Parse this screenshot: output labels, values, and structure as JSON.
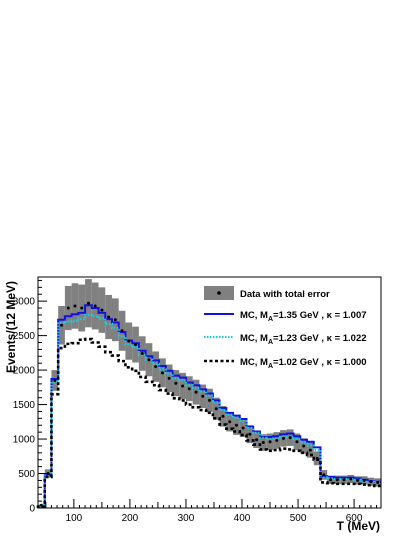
{
  "chart_data": {
    "type": "line",
    "xlabel": "T (MeV)",
    "ylabel": "Events/(12 MeV)",
    "xlim": [
      36,
      648
    ],
    "ylim": [
      0,
      3350
    ],
    "x_ticks": [
      100,
      200,
      300,
      400,
      500,
      600
    ],
    "y_ticks": [
      0,
      500,
      1000,
      1500,
      2000,
      2500,
      3000
    ],
    "bin_width": 12,
    "bin_edges": [
      36,
      48,
      60,
      72,
      84,
      96,
      108,
      120,
      132,
      144,
      156,
      168,
      180,
      192,
      204,
      216,
      228,
      240,
      252,
      264,
      276,
      288,
      300,
      312,
      324,
      336,
      348,
      360,
      372,
      384,
      396,
      408,
      420,
      432,
      444,
      456,
      468,
      480,
      492,
      504,
      516,
      528,
      540,
      552,
      564,
      576,
      588,
      600,
      612,
      624,
      636,
      648
    ],
    "grid": false,
    "legend_position": "top-right",
    "series": [
      {
        "name": "Data with total error",
        "style": "points-with-error-band",
        "color": "#000000",
        "band_color": "#808080",
        "x": [
          42,
          54,
          66,
          78,
          90,
          102,
          114,
          126,
          138,
          150,
          162,
          174,
          186,
          198,
          210,
          222,
          234,
          246,
          258,
          270,
          282,
          294,
          306,
          318,
          330,
          342,
          354,
          366,
          378,
          390,
          402,
          414,
          426,
          438,
          450,
          462,
          474,
          486,
          498,
          510,
          522,
          534,
          546,
          558,
          570,
          582,
          594,
          606,
          618,
          630,
          642
        ],
        "values": [
          40,
          500,
          1850,
          2650,
          2900,
          2930,
          2900,
          2970,
          2930,
          2870,
          2770,
          2730,
          2570,
          2420,
          2370,
          2240,
          2150,
          2050,
          1960,
          1880,
          1810,
          1770,
          1730,
          1680,
          1620,
          1560,
          1440,
          1330,
          1250,
          1200,
          1160,
          1070,
          990,
          950,
          960,
          980,
          1010,
          1020,
          960,
          900,
          840,
          720,
          480,
          410,
          410,
          410,
          420,
          400,
          400,
          380,
          370
        ],
        "error": [
          10,
          60,
          150,
          280,
          320,
          330,
          340,
          350,
          340,
          330,
          320,
          310,
          290,
          270,
          260,
          250,
          240,
          220,
          210,
          200,
          190,
          190,
          180,
          180,
          170,
          170,
          160,
          150,
          140,
          140,
          130,
          130,
          120,
          120,
          120,
          120,
          120,
          120,
          120,
          110,
          110,
          100,
          70,
          60,
          60,
          60,
          60,
          60,
          60,
          60,
          60
        ]
      },
      {
        "name": "MC, M_A=1.35 GeV , κ = 1.007",
        "legend_label": "MC, M",
        "legend_sub": "A",
        "legend_rest": "=1.35 GeV , κ = 1.007",
        "style": "solid",
        "color": "#1212e0",
        "values": [
          20,
          480,
          1870,
          2730,
          2780,
          2810,
          2830,
          2940,
          2900,
          2830,
          2740,
          2690,
          2550,
          2430,
          2390,
          2280,
          2200,
          2140,
          2060,
          1990,
          1920,
          1890,
          1820,
          1780,
          1720,
          1660,
          1560,
          1450,
          1380,
          1340,
          1290,
          1180,
          1110,
          1030,
          1030,
          1040,
          1070,
          1080,
          1040,
          990,
          960,
          880,
          460,
          450,
          440,
          440,
          440,
          430,
          410,
          390,
          380
        ]
      },
      {
        "name": "MC, M_A=1.23 GeV , κ = 1.022",
        "legend_label": "MC, M",
        "legend_sub": "A",
        "legend_rest": "=1.23 GeV , κ = 1.022",
        "style": "dotted",
        "color": "#22c8dc",
        "values": [
          20,
          470,
          1830,
          2680,
          2700,
          2710,
          2740,
          2800,
          2780,
          2750,
          2670,
          2610,
          2490,
          2370,
          2330,
          2220,
          2150,
          2090,
          2010,
          1950,
          1880,
          1850,
          1780,
          1740,
          1690,
          1630,
          1530,
          1420,
          1350,
          1310,
          1260,
          1160,
          1090,
          1020,
          1000,
          1010,
          1030,
          1030,
          1000,
          950,
          910,
          840,
          440,
          430,
          420,
          420,
          420,
          410,
          390,
          380,
          370
        ]
      },
      {
        "name": "MC, M_A=1.02 GeV , κ = 1.000",
        "legend_label": "MC, M",
        "legend_sub": "A",
        "legend_rest": "=1.02 GeV , κ = 1.000",
        "style": "dashed",
        "color": "#000000",
        "values": [
          20,
          450,
          1650,
          2320,
          2380,
          2390,
          2440,
          2450,
          2400,
          2340,
          2260,
          2210,
          2130,
          2040,
          1990,
          1900,
          1830,
          1780,
          1710,
          1660,
          1590,
          1560,
          1500,
          1460,
          1420,
          1380,
          1300,
          1210,
          1150,
          1110,
          1060,
          980,
          920,
          850,
          830,
          840,
          860,
          850,
          830,
          800,
          770,
          700,
          370,
          360,
          350,
          350,
          350,
          350,
          340,
          330,
          320
        ]
      }
    ]
  }
}
